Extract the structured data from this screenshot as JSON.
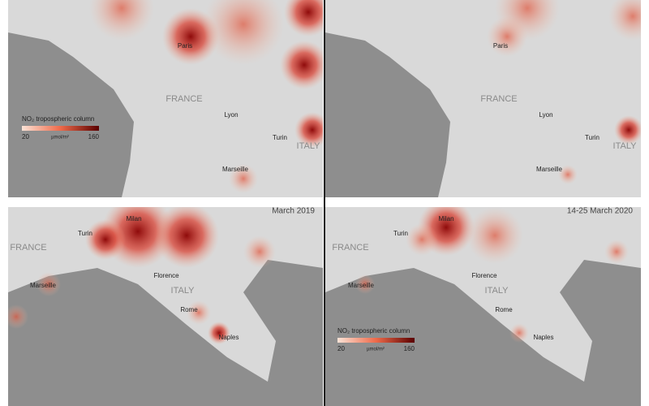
{
  "panels": [
    {
      "labels": [
        "Paris",
        "FRANCE",
        "Lyon",
        "Turin",
        "ITALY",
        "Marseille"
      ],
      "colorbar": {
        "title": "NO₂ tropospheric column",
        "min": "20",
        "unit": "µmol/m²",
        "max": "160"
      }
    },
    {
      "labels": [
        "Paris",
        "FRANCE",
        "Lyon",
        "Turin",
        "ITALY",
        "Marseille"
      ]
    },
    {
      "date": "March 2019",
      "labels": [
        "Milan",
        "Turin",
        "FRANCE",
        "Marseille",
        "Florence",
        "ITALY",
        "Rome",
        "Naples"
      ]
    },
    {
      "date": "14-25 March 2020",
      "labels": [
        "Milan",
        "Turin",
        "FRANCE",
        "Marseille",
        "Florence",
        "ITALY",
        "Rome",
        "Naples"
      ],
      "colorbar": {
        "title": "NO₂ tropospheric column",
        "min": "20",
        "unit": "µmol/m²",
        "max": "160"
      }
    }
  ]
}
